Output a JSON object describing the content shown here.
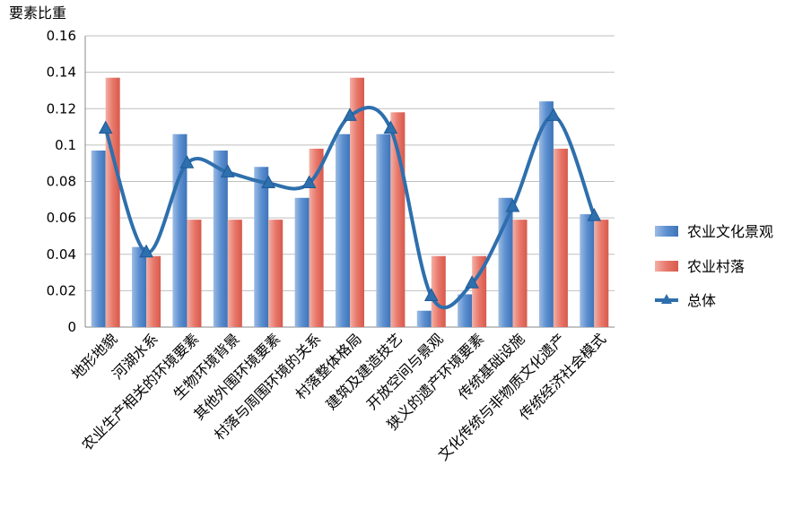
{
  "chart_data": {
    "type": "bar",
    "ylabel": "要素比重",
    "ylim": [
      0,
      0.16
    ],
    "yticks": [
      "0",
      "0.02",
      "0.04",
      "0.06",
      "0.08",
      "0.1",
      "0.12",
      "0.14",
      "0.16"
    ],
    "grid": true,
    "legend_position": "right",
    "categories": [
      "地形地貌",
      "河湖水系",
      "农业生产相关的环境要素",
      "生物环境背景",
      "其他外围环境要素",
      "村落与周围环境的关系",
      "村落整体格局",
      "建筑及建造技艺",
      "开放空间与景观",
      "狭义的遗产环境要素",
      "传统基础设施",
      "文化传统与非物质文化遗产",
      "传统经济社会模式"
    ],
    "series": [
      {
        "name": "农业文化景观",
        "kind": "bar",
        "color": "#4f81bd",
        "values": [
          0.097,
          0.044,
          0.106,
          0.097,
          0.088,
          0.071,
          0.106,
          0.106,
          0.009,
          0.018,
          0.071,
          0.124,
          0.062
        ]
      },
      {
        "name": "农业村落",
        "kind": "bar",
        "color": "#e8776a",
        "values": [
          0.137,
          0.039,
          0.059,
          0.059,
          0.059,
          0.098,
          0.137,
          0.118,
          0.039,
          0.039,
          0.059,
          0.098,
          0.059
        ]
      },
      {
        "name": "总体",
        "kind": "line",
        "color": "#2e6fad",
        "values": [
          0.109,
          0.041,
          0.09,
          0.085,
          0.079,
          0.079,
          0.116,
          0.109,
          0.017,
          0.024,
          0.066,
          0.116,
          0.061
        ]
      }
    ]
  }
}
